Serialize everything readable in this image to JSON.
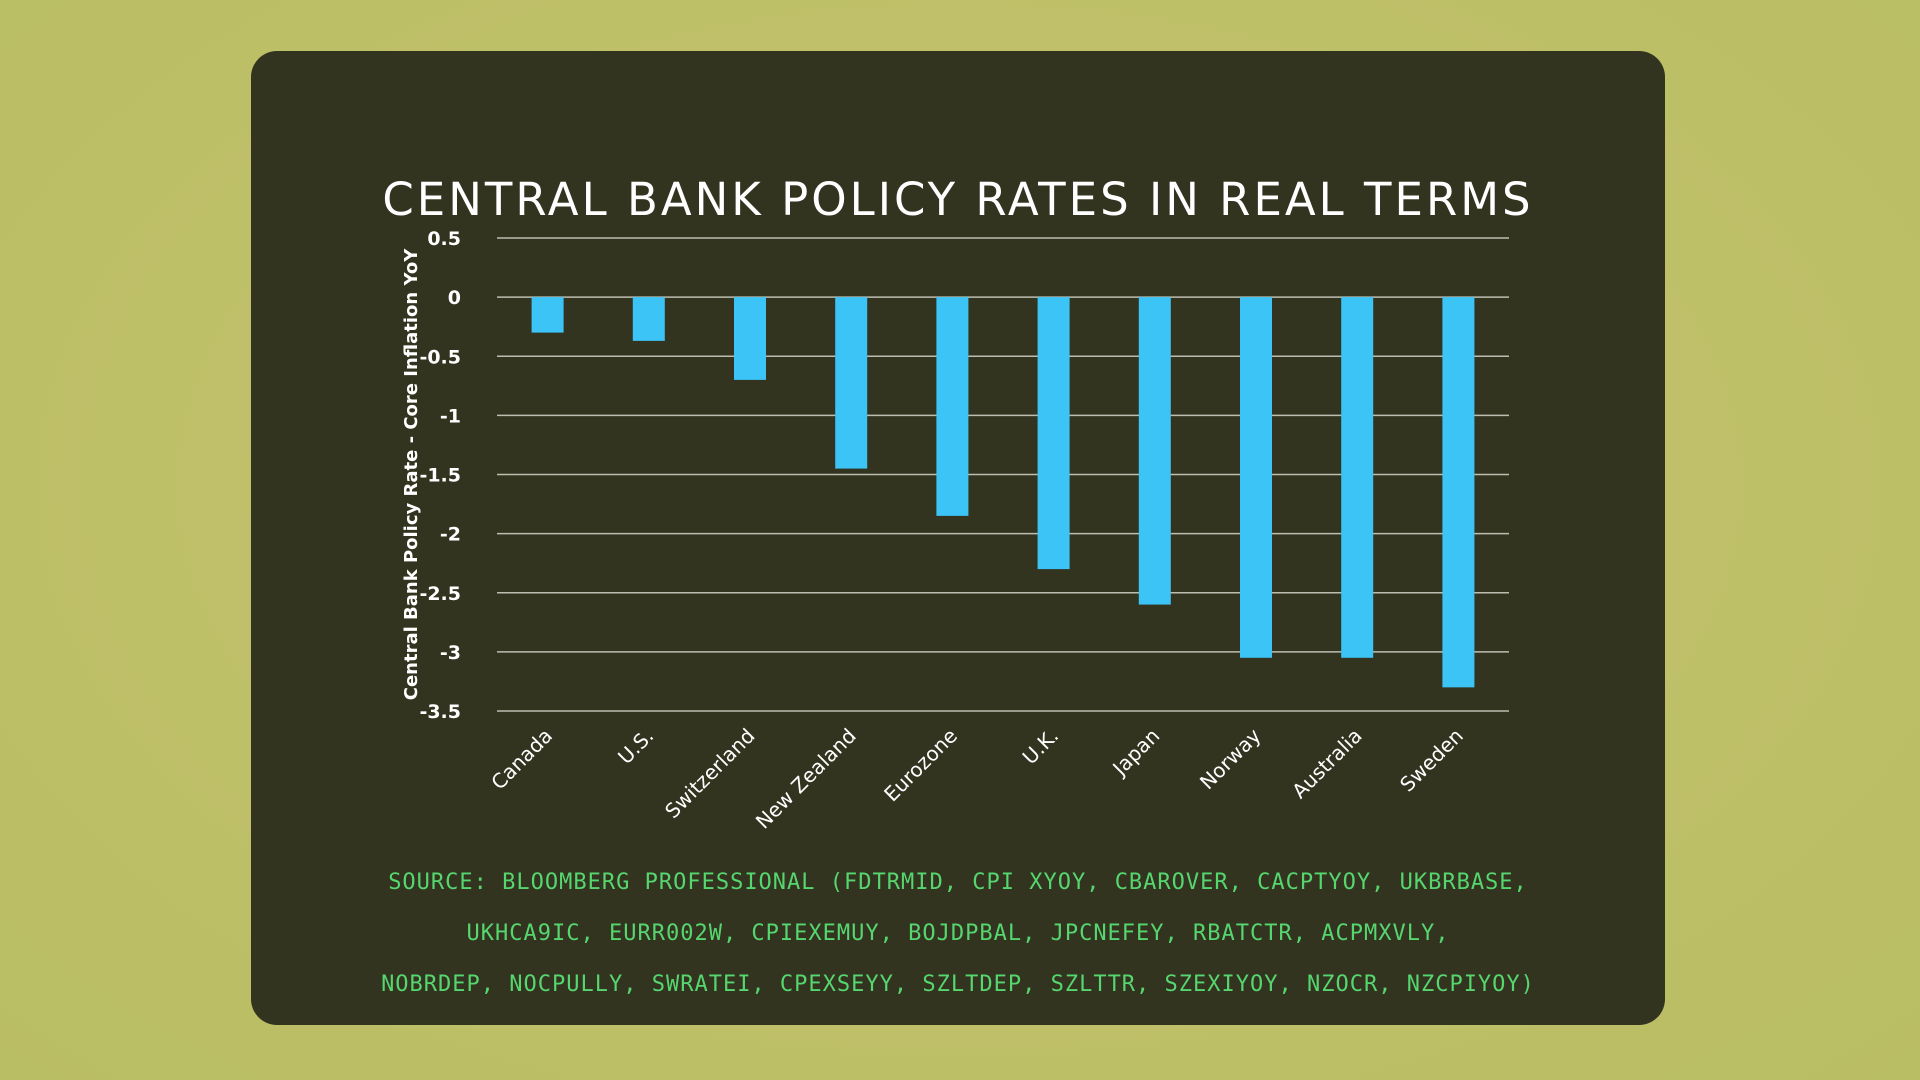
{
  "chart_data": {
    "type": "bar",
    "title": "CENTRAL BANK POLICY RATES IN REAL TERMS",
    "ylabel": "Central Bank Policy Rate - Core Inflation YoY",
    "xlabel": "",
    "categories": [
      "Canada",
      "U.S.",
      "Switzerland",
      "New Zealand",
      "Eurozone",
      "U.K.",
      "Japan",
      "Norway",
      "Australia",
      "Sweden"
    ],
    "values": [
      -0.3,
      -0.37,
      -0.7,
      -1.45,
      -1.85,
      -2.3,
      -2.6,
      -3.05,
      -3.05,
      -3.3
    ],
    "ylim": [
      -3.5,
      0.5
    ],
    "yticks": [
      0.5,
      0,
      -0.5,
      -1,
      -1.5,
      -2,
      -2.5,
      -3,
      -3.5
    ],
    "ytick_labels": [
      "0.5",
      "0",
      "-0.5",
      "-1",
      "-1.5",
      "-2",
      "-2.5",
      "-3",
      "-3.5"
    ],
    "grid": true,
    "legend": "none",
    "bar_color": "#3bc4f5"
  },
  "source": {
    "lines": [
      "SOURCE: BLOOMBERG PROFESSIONAL (FDTRMID, CPI XYOY, CBAROVER, CACPTYOY, UKBRBASE,",
      "UKHCA9IC, EURR002W, CPIEXEMUY, BOJDPBAL, JPCNEFEY, RBATCTR, ACPMXVLY,",
      "NOBRDEP, NOCPULLY, SWRATEI, CPEXSEYY, SZLTDEP, SZLTTR, SZEXIYOY, NZOCR, NZCPIYOY)"
    ]
  },
  "colors": {
    "card_background": "#333420",
    "page_background": "#c3c168",
    "source_text": "#56d66f",
    "gridline": "#bdbdb0"
  }
}
